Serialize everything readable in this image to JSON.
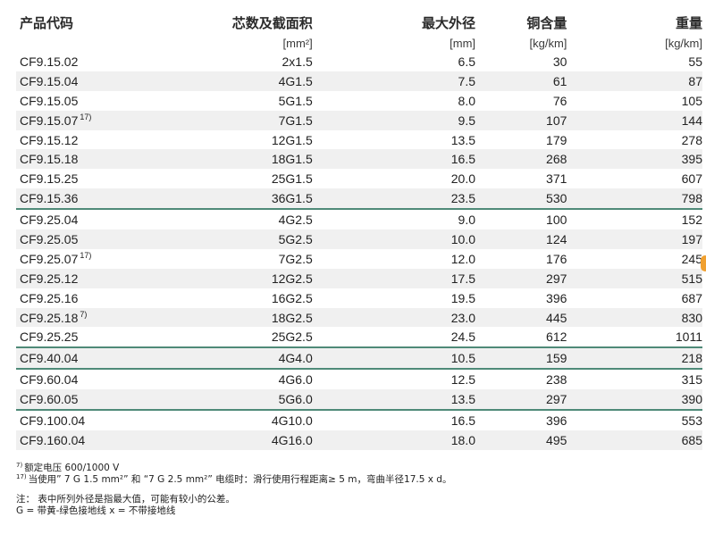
{
  "table": {
    "headers": [
      "产品代码",
      "芯数及截面积",
      "最大外径",
      "铜含量",
      "重量"
    ],
    "units": [
      "",
      "[mm²]",
      "[mm]",
      "[kg/km]",
      "[kg/km]"
    ],
    "rows": [
      {
        "code": "CF9.15.02",
        "fn": "",
        "cores": "2x1.5",
        "dia": "6.5",
        "cu": "30",
        "wt": "55",
        "group_start": false
      },
      {
        "code": "CF9.15.04",
        "fn": "",
        "cores": "4G1.5",
        "dia": "7.5",
        "cu": "61",
        "wt": "87",
        "group_start": false
      },
      {
        "code": "CF9.15.05",
        "fn": "",
        "cores": "5G1.5",
        "dia": "8.0",
        "cu": "76",
        "wt": "105",
        "group_start": false
      },
      {
        "code": "CF9.15.07",
        "fn": "17)",
        "cores": "7G1.5",
        "dia": "9.5",
        "cu": "107",
        "wt": "144",
        "group_start": false
      },
      {
        "code": "CF9.15.12",
        "fn": "",
        "cores": "12G1.5",
        "dia": "13.5",
        "cu": "179",
        "wt": "278",
        "group_start": false
      },
      {
        "code": "CF9.15.18",
        "fn": "",
        "cores": "18G1.5",
        "dia": "16.5",
        "cu": "268",
        "wt": "395",
        "group_start": false
      },
      {
        "code": "CF9.15.25",
        "fn": "",
        "cores": "25G1.5",
        "dia": "20.0",
        "cu": "371",
        "wt": "607",
        "group_start": false
      },
      {
        "code": "CF9.15.36",
        "fn": "",
        "cores": "36G1.5",
        "dia": "23.5",
        "cu": "530",
        "wt": "798",
        "group_start": false
      },
      {
        "code": "CF9.25.04",
        "fn": "",
        "cores": "4G2.5",
        "dia": "9.0",
        "cu": "100",
        "wt": "152",
        "group_start": true
      },
      {
        "code": "CF9.25.05",
        "fn": "",
        "cores": "5G2.5",
        "dia": "10.0",
        "cu": "124",
        "wt": "197",
        "group_start": false
      },
      {
        "code": "CF9.25.07",
        "fn": "17)",
        "cores": "7G2.5",
        "dia": "12.0",
        "cu": "176",
        "wt": "245",
        "group_start": false
      },
      {
        "code": "CF9.25.12",
        "fn": "",
        "cores": "12G2.5",
        "dia": "17.5",
        "cu": "297",
        "wt": "515",
        "group_start": false
      },
      {
        "code": "CF9.25.16",
        "fn": "",
        "cores": "16G2.5",
        "dia": "19.5",
        "cu": "396",
        "wt": "687",
        "group_start": false
      },
      {
        "code": "CF9.25.18",
        "fn": "7)",
        "cores": "18G2.5",
        "dia": "23.0",
        "cu": "445",
        "wt": "830",
        "group_start": false
      },
      {
        "code": "CF9.25.25",
        "fn": "",
        "cores": "25G2.5",
        "dia": "24.5",
        "cu": "612",
        "wt": "1011",
        "group_start": false
      },
      {
        "code": "CF9.40.04",
        "fn": "",
        "cores": "4G4.0",
        "dia": "10.5",
        "cu": "159",
        "wt": "218",
        "group_start": true
      },
      {
        "code": "CF9.60.04",
        "fn": "",
        "cores": "4G6.0",
        "dia": "12.5",
        "cu": "238",
        "wt": "315",
        "group_start": true
      },
      {
        "code": "CF9.60.05",
        "fn": "",
        "cores": "5G6.0",
        "dia": "13.5",
        "cu": "297",
        "wt": "390",
        "group_start": false
      },
      {
        "code": "CF9.100.04",
        "fn": "",
        "cores": "4G10.0",
        "dia": "16.5",
        "cu": "396",
        "wt": "553",
        "group_start": true
      },
      {
        "code": "CF9.160.04",
        "fn": "",
        "cores": "4G16.0",
        "dia": "18.0",
        "cu": "495",
        "wt": "685",
        "group_start": false
      }
    ]
  },
  "footnotes": [
    {
      "mark": "7)",
      "text": "额定电压 600/1000 V"
    },
    {
      "mark": "17)",
      "text": "当使用” 7 G 1.5 mm²” 和 “7 G 2.5 mm²” 电缆时：滑行使用行程距离≥ 5 m，弯曲半径17.5 x d。"
    }
  ],
  "notes": [
    "注：  表中所列外径是指最大值，可能有较小的公差。",
    "G = 带黄-绿色接地线  x = 不带接地线"
  ],
  "colors": {
    "group_divider": "#4f8a78",
    "stripe": "#f0f0f0",
    "edge_mark": "#f0a030"
  }
}
